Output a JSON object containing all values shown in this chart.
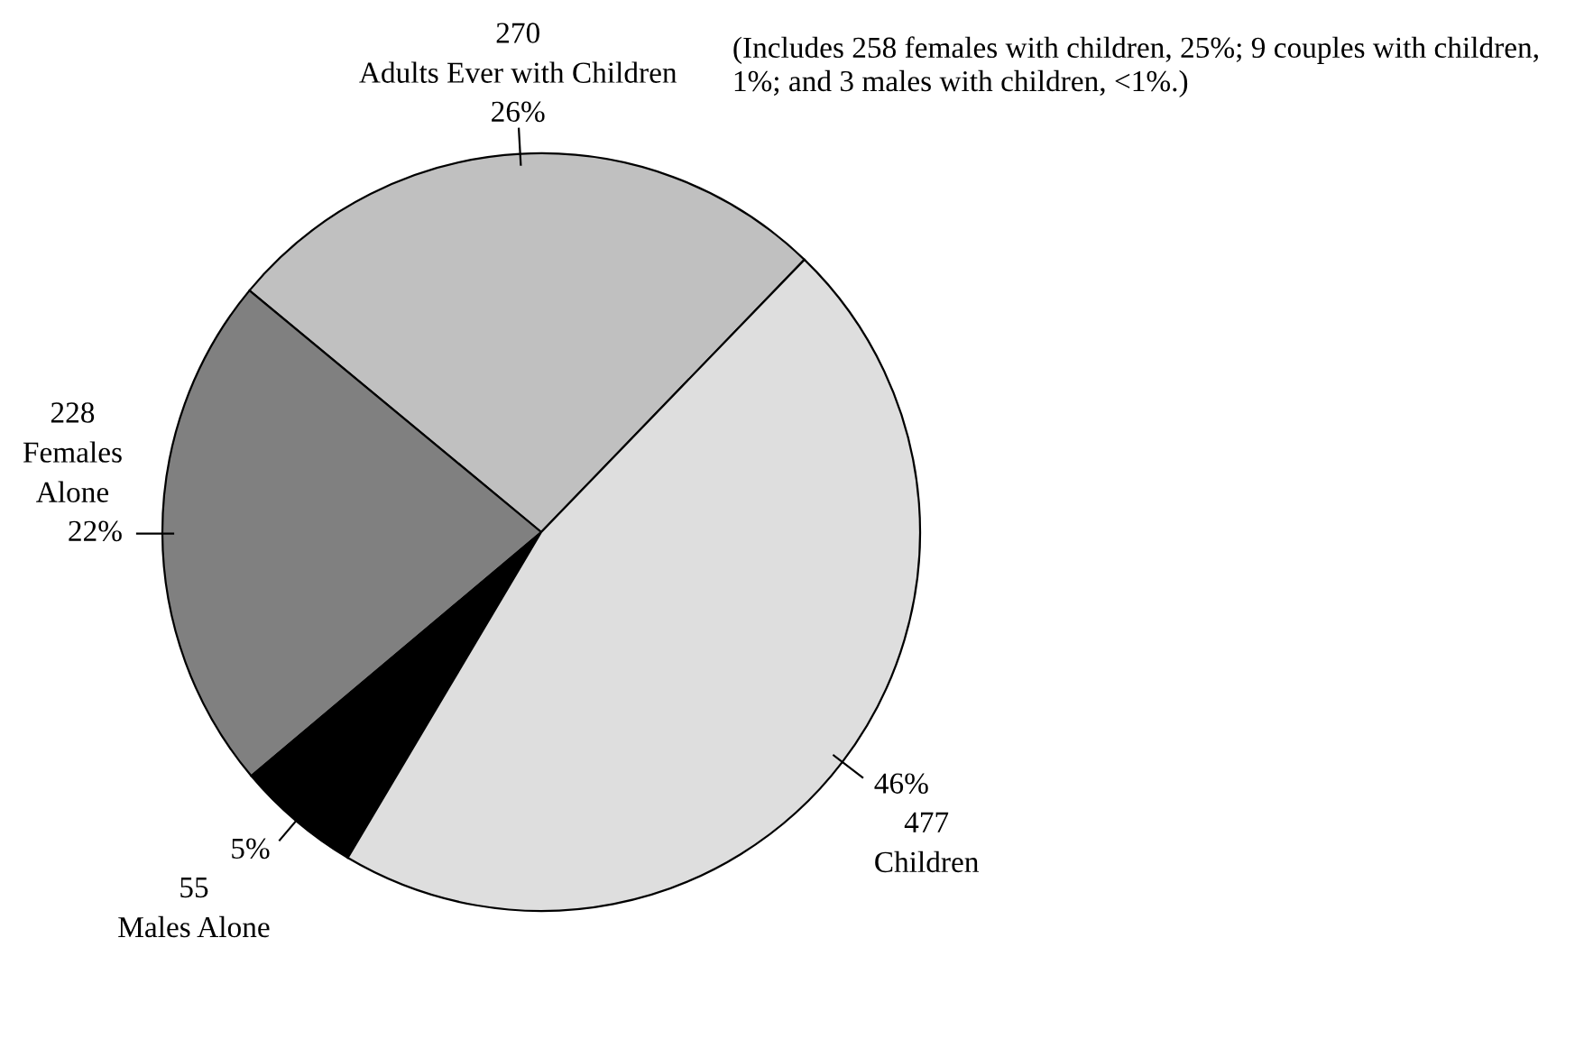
{
  "chart_data": {
    "type": "pie",
    "categories": [
      "Adults Ever with Children",
      "Females Alone",
      "Males Alone",
      "Children"
    ],
    "values": [
      270,
      228,
      55,
      477
    ],
    "data_labels": true,
    "colors": [
      "#c0c0c0",
      "#808080",
      "#000000",
      "#dedede"
    ],
    "annotations": [
      {
        "text": "26%",
        "x": "Adults Ever with Children"
      },
      {
        "text": "22%",
        "x": "Females Alone"
      },
      {
        "text": "5%",
        "x": "Males Alone"
      },
      {
        "text": "46%",
        "x": "Children"
      },
      "(Includes 258 females with children, 25%; 9 couples with children, 1%; and 3 males with children, <1%.)"
    ]
  }
}
